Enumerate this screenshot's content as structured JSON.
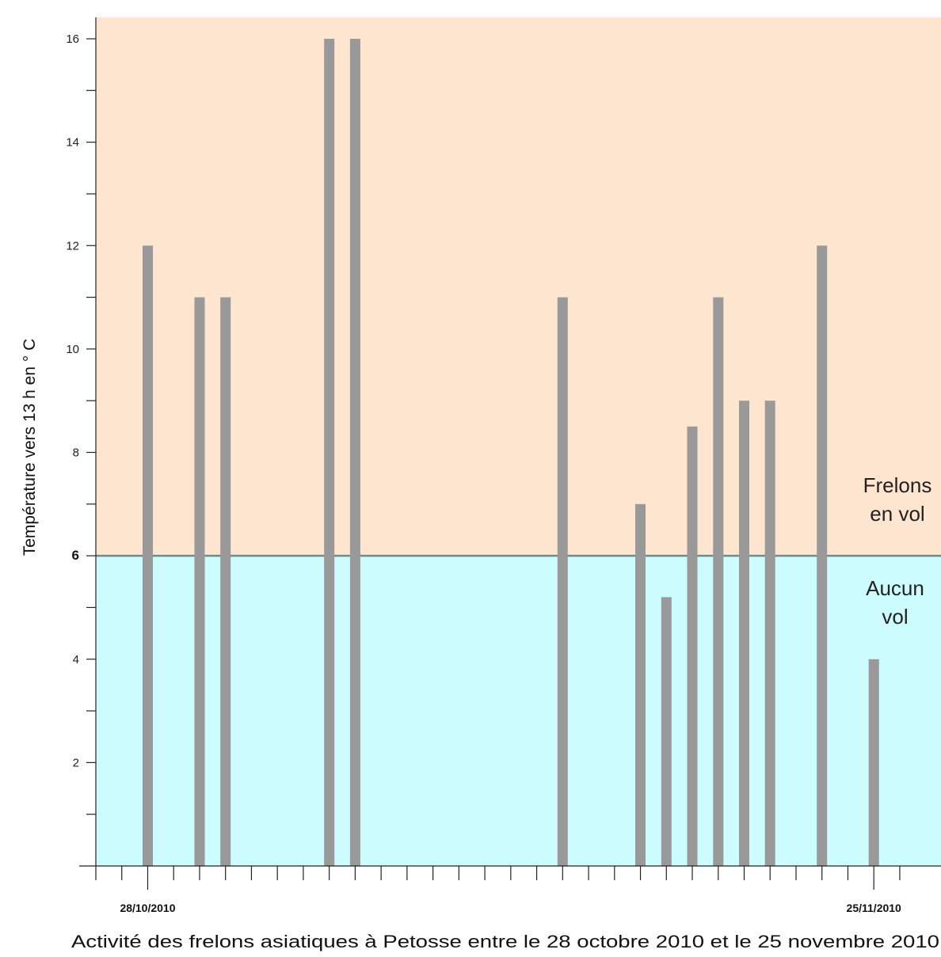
{
  "chart_data": {
    "type": "bar",
    "title": "Activité des frelons asiatiques à Petosse entre le 28 octobre 2010 et le 25 novembre 2010",
    "ylabel": "Température vers 13 h en ° C",
    "xlabel": "",
    "ylim": [
      0,
      16.5
    ],
    "y_ticks": [
      2,
      4,
      6,
      8,
      10,
      12,
      14,
      16
    ],
    "y_highlight_tick": 6,
    "x_start_date": "26/10/2010",
    "x_end_date": "26/11/2010",
    "x_labels": [
      {
        "date": "28/10/2010",
        "text": "28/10/2010"
      },
      {
        "date": "25/11/2010",
        "text": "25/11/2010"
      }
    ],
    "threshold": 6,
    "zones": [
      {
        "id": "above",
        "lines": [
          "Frelons",
          "en vol"
        ],
        "color": "#fde5cf"
      },
      {
        "id": "below",
        "lines": [
          "Aucun",
          "vol"
        ],
        "color": "#ccfcfe"
      }
    ],
    "bar_color": "#999999",
    "threshold_line_color": "#6e8a8a",
    "points": [
      {
        "date": "28/10/2010",
        "value": 12
      },
      {
        "date": "30/10/2010",
        "value": 11
      },
      {
        "date": "31/10/2010",
        "value": 11
      },
      {
        "date": "04/11/2010",
        "value": 16
      },
      {
        "date": "05/11/2010",
        "value": 16
      },
      {
        "date": "13/11/2010",
        "value": 11
      },
      {
        "date": "16/11/2010",
        "value": 7
      },
      {
        "date": "17/11/2010",
        "value": 5.2
      },
      {
        "date": "18/11/2010",
        "value": 8.5
      },
      {
        "date": "19/11/2010",
        "value": 11
      },
      {
        "date": "20/11/2010",
        "value": 9
      },
      {
        "date": "21/11/2010",
        "value": 9
      },
      {
        "date": "23/11/2010",
        "value": 12
      },
      {
        "date": "25/11/2010",
        "value": 4
      }
    ],
    "grid": false
  }
}
